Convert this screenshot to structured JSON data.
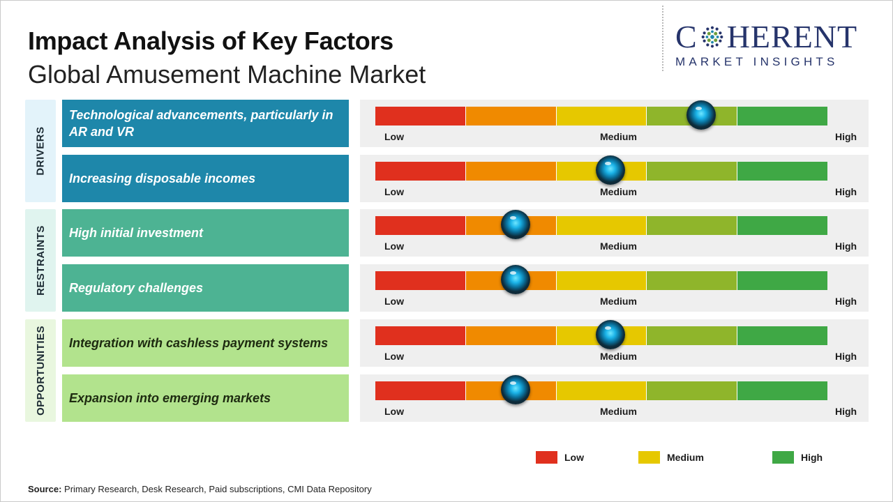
{
  "header": {
    "title": "Impact Analysis of Key Factors",
    "subtitle": "Global Amusement Machine Market"
  },
  "logo": {
    "brand_left": "C",
    "brand_right": "HERENT",
    "tagline": "MARKET INSIGHTS",
    "color": "#26346b"
  },
  "colors": {
    "low": "#e0301e",
    "low_mid": "#f08a00",
    "medium": "#e6c800",
    "mid_high": "#8fb52b",
    "high": "#3fa845"
  },
  "meter_labels": {
    "low": "Low",
    "medium": "Medium",
    "high": "High"
  },
  "categories": [
    {
      "label": "DRIVERS",
      "bg": "#e3f3fa",
      "factor_bg": "#1e87aa"
    },
    {
      "label": "RESTRAINTS",
      "bg": "#e0f4ef",
      "factor_bg": "#4db393"
    },
    {
      "label": "OPPORTUNITIES",
      "bg": "#e9f7df",
      "factor_bg": "#b2e38d"
    }
  ],
  "chart_data": {
    "type": "bar",
    "scale": [
      "Low",
      "Medium",
      "High"
    ],
    "factors": [
      {
        "category": "DRIVERS",
        "name": "Technological advancements, particularly in AR and VR",
        "impact": 0.72
      },
      {
        "category": "DRIVERS",
        "name": "Increasing disposable incomes",
        "impact": 0.52
      },
      {
        "category": "RESTRAINTS",
        "name": "High initial investment",
        "impact": 0.31
      },
      {
        "category": "RESTRAINTS",
        "name": "Regulatory challenges",
        "impact": 0.31
      },
      {
        "category": "OPPORTUNITIES",
        "name": "Integration with cashless payment systems",
        "impact": 0.52
      },
      {
        "category": "OPPORTUNITIES",
        "name": "Expansion into emerging markets",
        "impact": 0.31
      }
    ],
    "legend": [
      {
        "label": "Low",
        "color": "#e0301e"
      },
      {
        "label": "Medium",
        "color": "#e6c800"
      },
      {
        "label": "High",
        "color": "#3fa845"
      }
    ]
  },
  "source": {
    "label": "Source:",
    "text": " Primary Research, Desk Research, Paid subscriptions, CMI Data Repository"
  }
}
